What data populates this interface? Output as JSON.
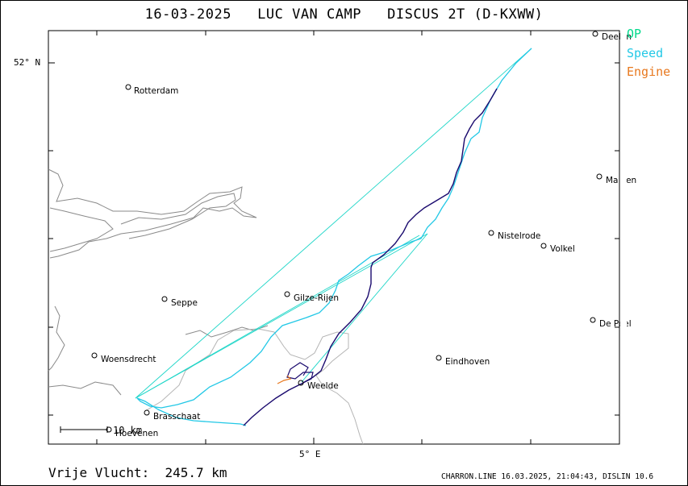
{
  "title": "16-03-2025   LUC VAN CAMP   DISCUS 2T (D-KXWW)",
  "legend": {
    "op": {
      "label": "OP",
      "color": "#00d98b"
    },
    "speed": {
      "label": "Speed",
      "color": "#22c8e6"
    },
    "engine": {
      "label": "Engine",
      "color": "#e8781e"
    }
  },
  "axes": {
    "lat_label": "52° N",
    "lon_label": "5° E"
  },
  "scale_bar": {
    "label": "10 km"
  },
  "places": [
    {
      "name": "Rotterdam"
    },
    {
      "name": "Deelen"
    },
    {
      "name": "Malden"
    },
    {
      "name": "Nistelrode"
    },
    {
      "name": "Volkel"
    },
    {
      "name": "Seppe"
    },
    {
      "name": "Gilze-Rijen"
    },
    {
      "name": "De Peel"
    },
    {
      "name": "Woensdrecht"
    },
    {
      "name": "Eindhoven"
    },
    {
      "name": "Weelde"
    },
    {
      "name": "Brasschaat"
    },
    {
      "name": "Hoevenen"
    }
  ],
  "footer": {
    "distance": "Vrije Vlucht:  245.7 km",
    "info": "CHARRON.LINE 16.03.2025, 21:04:43, DISLIN 10.6"
  },
  "colors": {
    "track": "#1a0a6e",
    "op_lines": "#1fd6c8",
    "speed": "#22c8e6",
    "coast": "#8a8a8a",
    "border": "#b4b4b4"
  }
}
